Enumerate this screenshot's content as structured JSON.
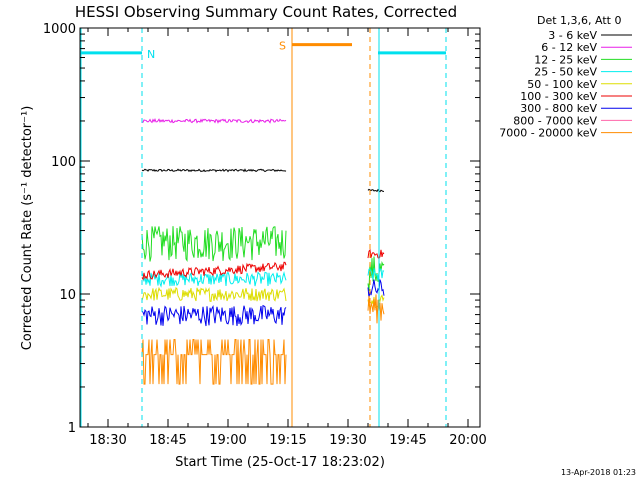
{
  "chart_data": {
    "type": "line",
    "title": "HESSI Observing Summary Count Rates, Corrected",
    "xlabel": "Start Time (25-Oct-17 18:23:02)",
    "ylabel": "Corrected Count Rate (s⁻¹ detector⁻¹)",
    "x_tick_labels": [
      "18:30",
      "18:45",
      "19:00",
      "19:15",
      "19:30",
      "19:45",
      "20:00"
    ],
    "x_tick_minutes": [
      7,
      22,
      37,
      52,
      67,
      82,
      97
    ],
    "x_range_minutes": [
      0,
      100
    ],
    "y_scale": "log",
    "y_range": [
      1,
      1000
    ],
    "y_tick_labels": [
      "1",
      "10",
      "100",
      "1000"
    ],
    "y_tick_values": [
      1,
      10,
      100,
      1000
    ],
    "legend_title": "Det 1,3,6, Att 0",
    "legend_position": "top-right",
    "series": [
      {
        "name": "3 - 6 keV",
        "color": "#000000",
        "values_seg1": 85,
        "values_seg2": 60
      },
      {
        "name": "6 - 12 keV",
        "color": "#e81ee8",
        "values_seg1": 200,
        "values_seg2": null
      },
      {
        "name": "12 - 25 keV",
        "color": "#22dd22",
        "values_seg1": 25,
        "values_seg2": 15
      },
      {
        "name": "25 - 50 keV",
        "color": "#00eeee",
        "values_seg1": 13,
        "values_seg2": 14
      },
      {
        "name": "50 - 100 keV",
        "color": "#dddd00",
        "values_seg1": 10,
        "values_seg2": 9
      },
      {
        "name": "100 - 300 keV",
        "color": "#ee0000",
        "values_seg1": 15,
        "values_seg2": 20
      },
      {
        "name": "300 - 800 keV",
        "color": "#0000ee",
        "values_seg1": 7,
        "values_seg2": 11
      },
      {
        "name": "800 - 7000 keV",
        "color": "#ff66aa",
        "values_seg1": null,
        "values_seg2": null
      },
      {
        "name": "7000 - 20000 keV",
        "color": "#ff8c00",
        "values_seg1": 3.5,
        "values_seg2": 8
      }
    ],
    "segments_minutes": [
      [
        15.5,
        51.5
      ],
      [
        72.0,
        76.0
      ]
    ],
    "markers": {
      "night_label": "N",
      "saa_label": "S",
      "night_bars_minutes": [
        [
          0,
          15.5
        ],
        [
          74.5,
          91.5
        ]
      ],
      "night_level": 650,
      "saa_bar_minutes": [
        53,
        68
      ],
      "saa_level": 750,
      "cyan_solid_minutes": [
        0,
        74.5
      ],
      "cyan_dashed_minutes": [
        15.5,
        91.5
      ],
      "orange_solid_minutes": [
        53
      ],
      "orange_dashed_minutes": [
        72.5
      ]
    }
  },
  "footer": {
    "timestamp": "13-Apr-2018 01:23"
  }
}
